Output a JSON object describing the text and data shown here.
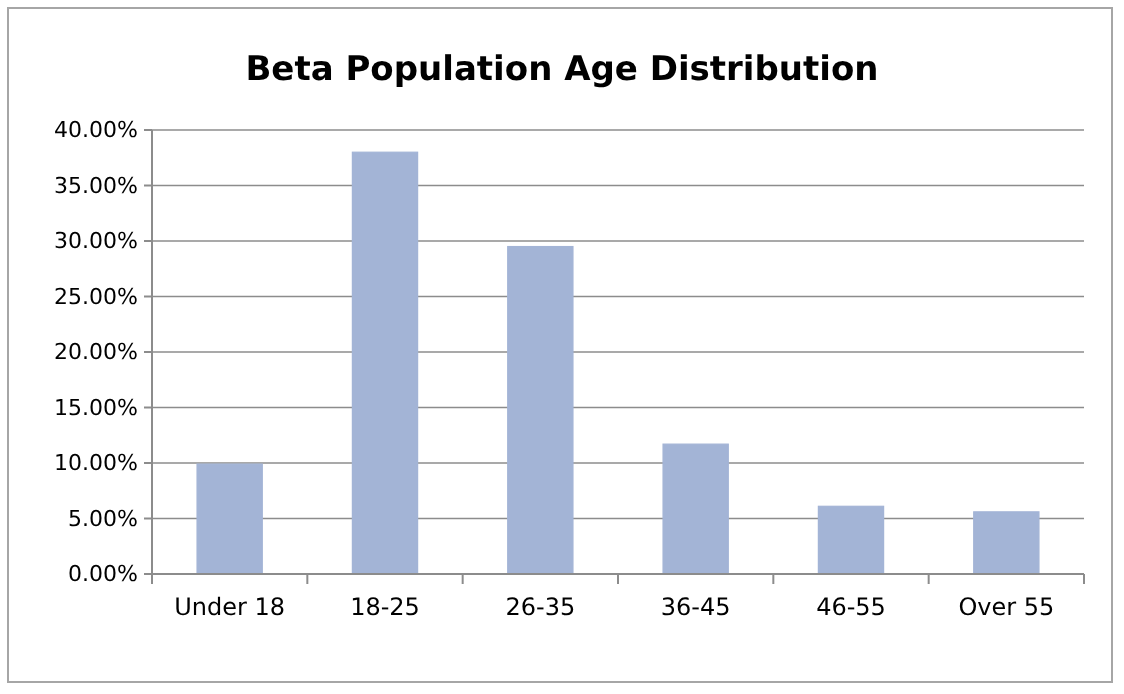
{
  "chart_data": {
    "type": "bar",
    "title": "Beta Population Age Distribution",
    "categories": [
      "Under 18",
      "18-25",
      "26-35",
      "36-45",
      "46-55",
      "Over 55"
    ],
    "values": [
      9.9,
      38.0,
      29.5,
      11.7,
      6.1,
      5.6
    ],
    "color": "#a3b4d6",
    "ylim": [
      0,
      40
    ],
    "yticks": [
      {
        "value": 0,
        "label": "0.00%"
      },
      {
        "value": 5,
        "label": "5.00%"
      },
      {
        "value": 10,
        "label": "10.00%"
      },
      {
        "value": 15,
        "label": "15.00%"
      },
      {
        "value": 20,
        "label": "20.00%"
      },
      {
        "value": 25,
        "label": "25.00%"
      },
      {
        "value": 30,
        "label": "30.00%"
      },
      {
        "value": 35,
        "label": "35.00%"
      },
      {
        "value": 40,
        "label": "40.00%"
      }
    ],
    "grid": "y"
  }
}
